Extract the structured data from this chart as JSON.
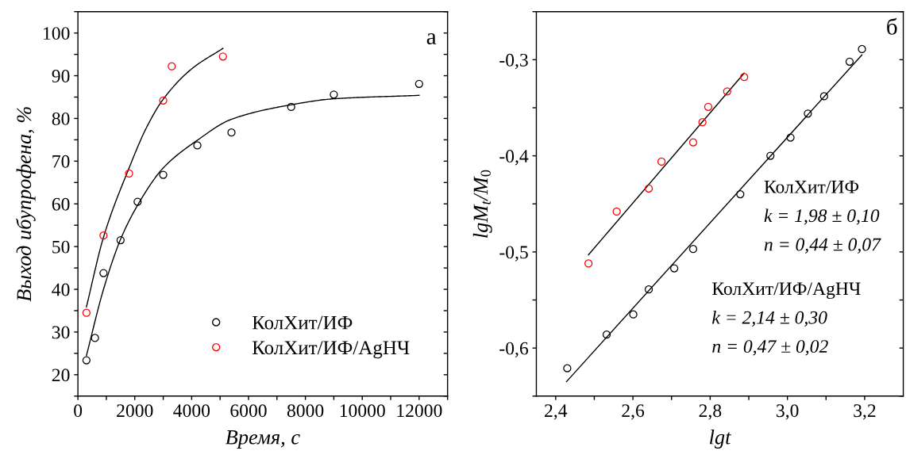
{
  "chart_data": [
    {
      "type": "scatter",
      "xlabel": "Время, с",
      "ylabel": "Выход ибупрофена, %",
      "xlim": [
        0,
        13000
      ],
      "ylim": [
        15,
        105
      ],
      "xticks": [
        0,
        {
          "value": 1000,
          "label": null
        },
        2000,
        {
          "value": 3000,
          "label": null
        },
        4000,
        {
          "value": 5000,
          "label": null
        },
        6000,
        {
          "value": 7000,
          "label": null
        },
        8000,
        {
          "value": 9000,
          "label": null
        },
        10000,
        {
          "value": 11000,
          "label": null
        },
        12000,
        {
          "value": 13000,
          "label": null
        }
      ],
      "yticks": [
        {
          "value": 15,
          "label": null
        },
        20,
        {
          "value": 25,
          "label": null
        },
        30,
        {
          "value": 35,
          "label": null
        },
        40,
        {
          "value": 45,
          "label": null
        },
        50,
        {
          "value": 55,
          "label": null
        },
        60,
        {
          "value": 65,
          "label": null
        },
        70,
        {
          "value": 75,
          "label": null
        },
        80,
        {
          "value": 85,
          "label": null
        },
        90,
        {
          "value": 95,
          "label": null
        },
        100,
        {
          "value": 105,
          "label": null
        }
      ],
      "marker": "circle",
      "legend": "bottom right",
      "grid": false,
      "annotations": [
        "а"
      ],
      "series": [
        {
          "name": "КолХит/ИФ",
          "color": "#000000",
          "x": [
            300,
            600,
            900,
            1500,
            2100,
            3000,
            4200,
            5400,
            7500,
            9000,
            12000
          ],
          "values": [
            23.4,
            28.6,
            43.8,
            51.5,
            60.5,
            66.8,
            73.7,
            76.7,
            82.7,
            85.6,
            88.1
          ]
        },
        {
          "name": "КолХит/ИФ/AgНЧ",
          "color": "#ff0000",
          "x": [
            300,
            900,
            1800,
            3000,
            3300,
            5100
          ],
          "values": [
            34.5,
            52.6,
            67.1,
            84.2,
            92.2,
            94.5
          ]
        },
        {
          "type": "line",
          "marker": "none",
          "color": "#000000",
          "x": [
            300,
            900,
            1500,
            2100,
            3000,
            4200,
            5400,
            7500,
            9000,
            12000
          ],
          "values": [
            24.5,
            40.0,
            51.7,
            59.7,
            68.4,
            74.9,
            79.8,
            83.2,
            84.6,
            85.4
          ]
        },
        {
          "type": "line",
          "marker": "none",
          "color": "#000000",
          "x": [
            300,
            900,
            1800,
            2400,
            3000,
            4000,
            5100
          ],
          "values": [
            35.9,
            52.2,
            68.4,
            77.7,
            84.5,
            91.6,
            96.4
          ]
        }
      ]
    },
    {
      "type": "scatter",
      "xlabel": "lgt",
      "ylabel": "lgM$_{t}$/M$_{0}$",
      "xlim": [
        2.35,
        3.3
      ],
      "ylim": [
        -0.65,
        -0.25
      ],
      "xticks": [
        {
          "value": 2.4,
          "label": "2,4"
        },
        {
          "value": 2.5,
          "label": null
        },
        {
          "value": 2.6,
          "label": "2,6"
        },
        {
          "value": 2.7,
          "label": null
        },
        {
          "value": 2.8,
          "label": "2,8"
        },
        {
          "value": 2.9,
          "label": null
        },
        {
          "value": 3.0,
          "label": "3,0"
        },
        {
          "value": 3.1,
          "label": null
        },
        {
          "value": 3.2,
          "label": "3,2"
        }
      ],
      "yticks": [
        {
          "value": -0.65,
          "label": null
        },
        {
          "value": -0.6,
          "label": "-0,6"
        },
        {
          "value": -0.55,
          "label": null
        },
        {
          "value": -0.5,
          "label": "-0,5"
        },
        {
          "value": -0.45,
          "label": null
        },
        {
          "value": -0.4,
          "label": "-0,4"
        },
        {
          "value": -0.35,
          "label": null
        },
        {
          "value": -0.3,
          "label": "-0,3"
        },
        {
          "value": -0.25,
          "label": null
        }
      ],
      "marker": "circle",
      "grid": false,
      "annotations": [
        "б",
        "КолХит/ИФ",
        "k = 1,98 ± 0,10",
        "n = 0,44 ± 0,07",
        "КолХит/ИФ/AgНЧ",
        "k = 2,14 ± 0,30",
        "n = 0,47 ± 0,02"
      ],
      "series": [
        {
          "color": "#000000",
          "x": [
            2.43,
            2.532,
            2.601,
            2.641,
            2.707,
            2.756,
            2.878,
            2.956,
            3.008,
            3.053,
            3.095,
            3.161,
            3.193
          ],
          "values": [
            -0.621,
            -0.586,
            -0.565,
            -0.539,
            -0.517,
            -0.497,
            -0.44,
            -0.4,
            -0.381,
            -0.356,
            -0.338,
            -0.302,
            -0.289
          ]
        },
        {
          "color": "#ff0000",
          "x": [
            2.485,
            2.558,
            2.641,
            2.674,
            2.756,
            2.78,
            2.795,
            2.844,
            2.888
          ],
          "values": [
            -0.512,
            -0.458,
            -0.434,
            -0.406,
            -0.386,
            -0.365,
            -0.349,
            -0.333,
            -0.318
          ]
        },
        {
          "type": "line",
          "marker": "none",
          "color": "#000000",
          "x": [
            2.428,
            3.193
          ],
          "values": [
            -0.635,
            -0.295
          ]
        },
        {
          "type": "line",
          "marker": "none",
          "color": "#000000",
          "x": [
            2.485,
            2.888
          ],
          "values": [
            -0.503,
            -0.314
          ]
        }
      ]
    }
  ]
}
